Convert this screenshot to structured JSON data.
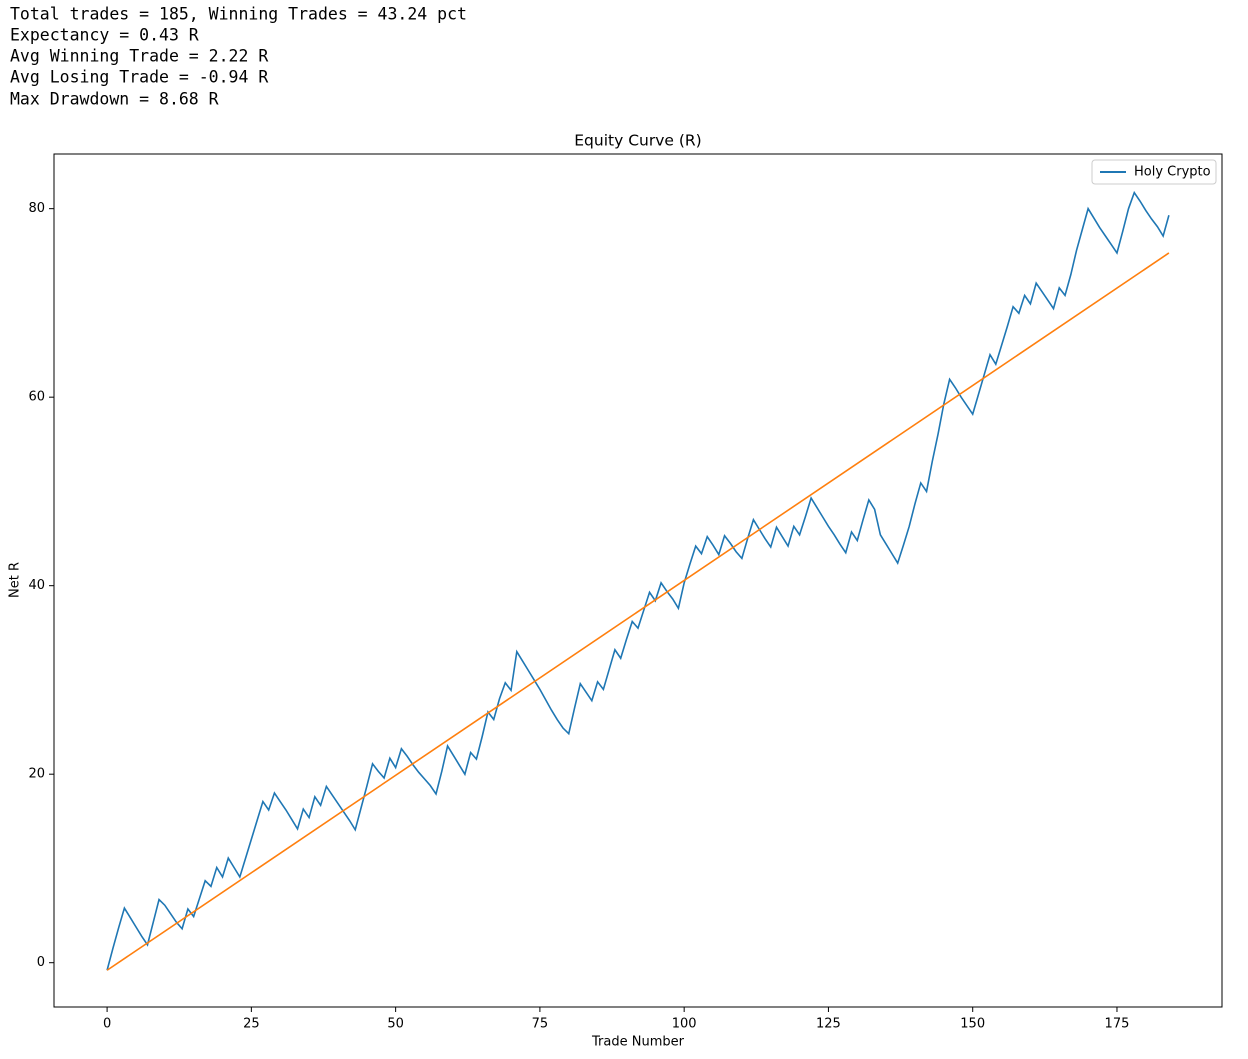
{
  "stats": [
    "Total trades = 185, Winning Trades = 43.24 pct",
    "Expectancy = 0.43 R",
    "Avg Winning Trade = 2.22 R",
    "Avg Losing Trade = -0.94 R",
    "Max Drawdown = 8.68 R"
  ],
  "chart_data": {
    "type": "line",
    "title": "Equity Curve (R)",
    "x_label": "Trade Number",
    "y_label": "Net R",
    "xlim": [
      -9.2,
      193.2
    ],
    "ylim": [
      -4.7,
      85.8
    ],
    "xticks": [
      0,
      25,
      50,
      75,
      100,
      125,
      150,
      175
    ],
    "yticks": [
      0,
      20,
      40,
      60,
      80
    ],
    "legend_position": "upper right",
    "series": [
      {
        "name": "Holy Crypto",
        "color": "#1f77b4",
        "x": [
          0,
          1,
          2,
          3,
          4,
          5,
          6,
          7,
          8,
          9,
          10,
          11,
          12,
          13,
          14,
          15,
          16,
          17,
          18,
          19,
          20,
          21,
          22,
          23,
          24,
          25,
          26,
          27,
          28,
          29,
          30,
          31,
          32,
          33,
          34,
          35,
          36,
          37,
          38,
          39,
          40,
          41,
          42,
          43,
          44,
          45,
          46,
          47,
          48,
          49,
          50,
          51,
          52,
          53,
          54,
          55,
          56,
          57,
          58,
          59,
          60,
          61,
          62,
          63,
          64,
          65,
          66,
          67,
          68,
          69,
          70,
          71,
          72,
          73,
          74,
          75,
          76,
          77,
          78,
          79,
          80,
          81,
          82,
          83,
          84,
          85,
          86,
          87,
          88,
          89,
          90,
          91,
          92,
          93,
          94,
          95,
          96,
          97,
          98,
          99,
          100,
          101,
          102,
          103,
          104,
          105,
          106,
          107,
          108,
          109,
          110,
          111,
          112,
          113,
          114,
          115,
          116,
          117,
          118,
          119,
          120,
          121,
          122,
          123,
          124,
          125,
          126,
          127,
          128,
          129,
          130,
          131,
          132,
          133,
          134,
          135,
          136,
          137,
          138,
          139,
          140,
          141,
          142,
          143,
          144,
          145,
          146,
          147,
          148,
          149,
          150,
          151,
          152,
          153,
          154,
          155,
          156,
          157,
          158,
          159,
          160,
          161,
          162,
          163,
          164,
          165,
          166,
          167,
          168,
          169,
          170,
          171,
          172,
          173,
          174,
          175,
          176,
          177,
          178,
          179,
          180,
          181,
          182,
          183,
          184
        ],
        "values": [
          -0.8,
          1.5,
          3.7,
          5.8,
          4.8,
          3.8,
          2.8,
          1.9,
          4.3,
          6.7,
          6.1,
          5.2,
          4.3,
          3.6,
          5.7,
          4.9,
          6.8,
          8.7,
          8.1,
          10.1,
          9.1,
          11.1,
          10.1,
          9.1,
          11.1,
          13.1,
          15.1,
          17.1,
          16.2,
          18.0,
          17.1,
          16.2,
          15.2,
          14.2,
          16.3,
          15.4,
          17.6,
          16.7,
          18.7,
          17.8,
          16.9,
          16.0,
          15.1,
          14.1,
          16.4,
          18.7,
          21.1,
          20.3,
          19.6,
          21.7,
          20.7,
          22.7,
          21.9,
          21.0,
          20.2,
          19.5,
          18.8,
          17.9,
          20.3,
          23.0,
          22.0,
          21.0,
          20.0,
          22.3,
          21.6,
          24.0,
          26.6,
          25.8,
          28.0,
          29.7,
          28.9,
          33.0,
          32.0,
          31.0,
          30.0,
          29.0,
          27.9,
          26.8,
          25.8,
          24.9,
          24.3,
          27.0,
          29.6,
          28.7,
          27.8,
          29.8,
          29.0,
          31.1,
          33.2,
          32.3,
          34.3,
          36.2,
          35.5,
          37.4,
          39.3,
          38.4,
          40.3,
          39.4,
          38.6,
          37.6,
          40.3,
          42.3,
          44.2,
          43.4,
          45.2,
          44.3,
          43.3,
          45.3,
          44.5,
          43.6,
          42.9,
          45.0,
          47.0,
          46.0,
          45.0,
          44.1,
          46.2,
          45.2,
          44.2,
          46.3,
          45.4,
          47.3,
          49.3,
          48.3,
          47.3,
          46.3,
          45.4,
          44.4,
          43.5,
          45.7,
          44.8,
          47.0,
          49.1,
          48.1,
          45.4,
          44.4,
          43.4,
          42.4,
          44.3,
          46.3,
          48.7,
          50.9,
          50.0,
          53.2,
          56.1,
          59.3,
          61.9,
          61.0,
          60.0,
          59.1,
          58.2,
          60.3,
          62.4,
          64.5,
          63.5,
          65.5,
          67.5,
          69.6,
          68.9,
          70.8,
          69.9,
          72.1,
          71.2,
          70.3,
          69.4,
          71.6,
          70.8,
          73.0,
          75.6,
          77.8,
          80.0,
          79.0,
          78.0,
          77.1,
          76.2,
          75.3,
          77.6,
          80.0,
          81.7,
          80.8,
          79.8,
          78.9,
          78.1,
          77.1,
          79.3
        ]
      },
      {
        "color": "#ff7f0e",
        "x": [
          0,
          184
        ],
        "values": [
          -0.8,
          75.3
        ]
      }
    ]
  }
}
